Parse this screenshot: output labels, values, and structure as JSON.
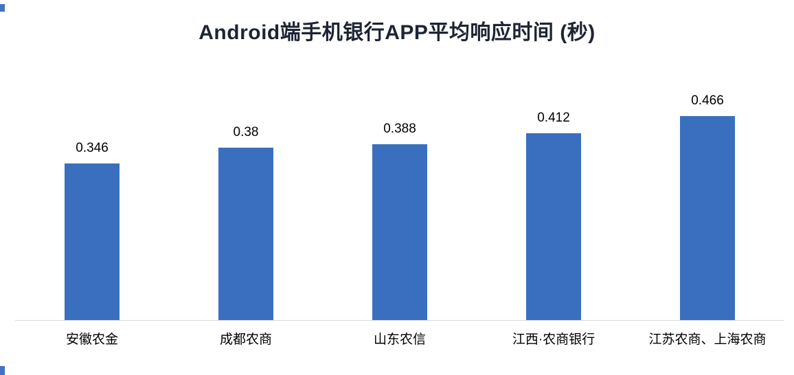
{
  "colors": {
    "bar": "#3a6fbf",
    "title": "#1d2433",
    "data_label": "#000000",
    "axis_line": "#d9d9d9",
    "edge_artifact": "#4472c4",
    "background": "#ffffff"
  },
  "chart_data": {
    "type": "bar",
    "title": "Android端手机银行APP平均响应时间 (秒)",
    "categories": [
      "安徽农金",
      "成都农商",
      "山东农信",
      "江西·农商银行",
      "江苏农商、上海农商"
    ],
    "values": [
      0.346,
      0.38,
      0.388,
      0.412,
      0.466
    ],
    "value_labels": [
      "0.346",
      "0.38",
      "0.388",
      "0.412",
      "0.466"
    ],
    "xlabel": "",
    "ylabel": "",
    "ylim": [
      0,
      0.5
    ],
    "grid": false,
    "legend": false,
    "y_axis_visible": false,
    "data_labels_position": "above-bar",
    "bar_color": "#3a6fbf"
  }
}
